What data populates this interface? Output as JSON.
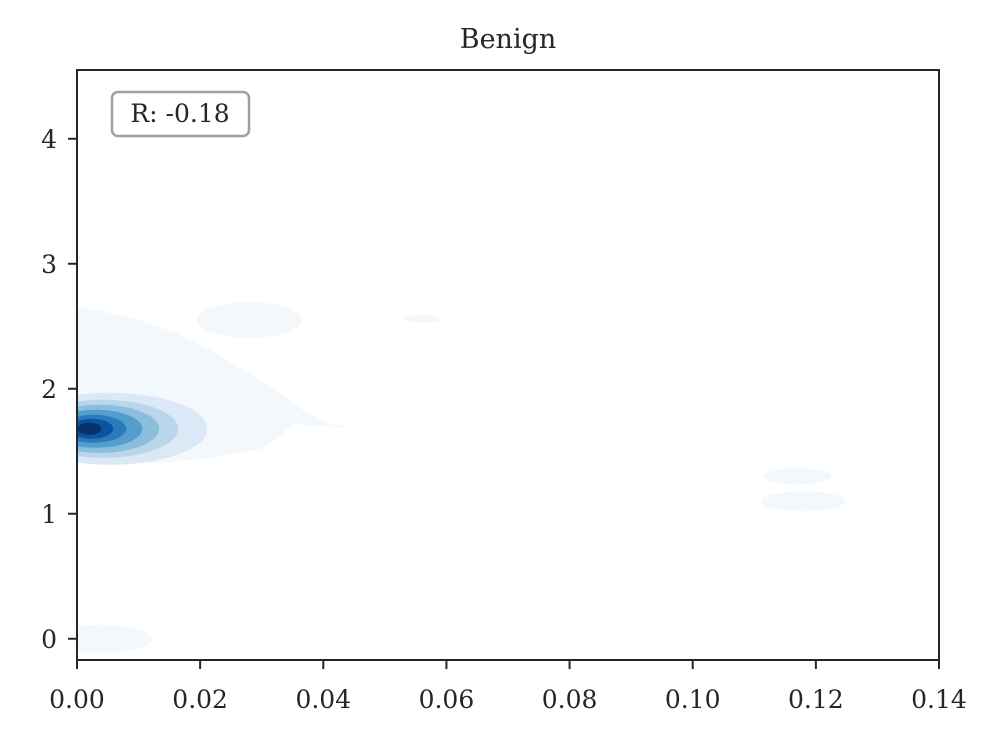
{
  "chart_data": {
    "type": "kde_contour",
    "title": "Benign",
    "xlabel": "",
    "ylabel": "",
    "xlim": [
      0.0,
      0.14
    ],
    "ylim": [
      -0.17,
      4.55
    ],
    "xticks": [
      "0.00",
      "0.02",
      "0.04",
      "0.06",
      "0.08",
      "0.10",
      "0.12",
      "0.14"
    ],
    "xtick_values": [
      0.0,
      0.02,
      0.04,
      0.06,
      0.08,
      0.1,
      0.12,
      0.14
    ],
    "yticks": [
      "0",
      "1",
      "2",
      "3",
      "4"
    ],
    "ytick_values": [
      0,
      1,
      2,
      3,
      4
    ],
    "annotation": "R: -0.18",
    "colormap": "Blues",
    "grid": false,
    "density_peaks": [
      {
        "x": 0.002,
        "y": 1.68,
        "level": "highest"
      },
      {
        "x": 0.028,
        "y": 2.55,
        "level": "lowest"
      },
      {
        "x": 0.056,
        "y": 2.56,
        "level": "lowest"
      },
      {
        "x": 0.118,
        "y": 1.1,
        "level": "lowest"
      },
      {
        "x": 0.117,
        "y": 1.3,
        "level": "lowest"
      },
      {
        "x": 0.004,
        "y": 0.0,
        "level": "lowest"
      }
    ],
    "colors": {
      "levels": [
        "#f3f8fd",
        "#dbe9f6",
        "#bad6eb",
        "#89bedc",
        "#539ecd",
        "#2b7bba",
        "#0b559f",
        "#08306b"
      ],
      "axis": "#262626",
      "annotation_border": "#a0a0a0"
    }
  }
}
